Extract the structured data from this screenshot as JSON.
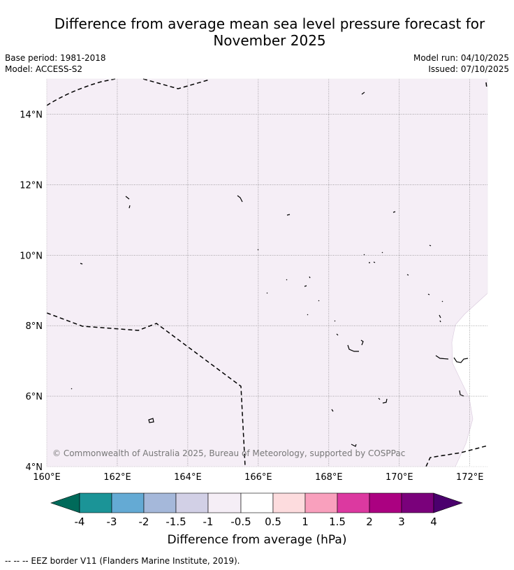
{
  "title_line1": "Difference from average mean sea level pressure forecast for",
  "title_line2": "November 2025",
  "base_period": "Base period: 1981-2018",
  "model": "Model: ACCESS-S2",
  "model_run": "Model run: 04/10/2025",
  "issued": "Issued: 07/10/2025",
  "copyright": "© Commonwealth of Australia 2025, Bureau of Meteorology, supported by COSPPac",
  "map": {
    "lat_labels": [
      "14°N",
      "12°N",
      "10°N",
      "8°N",
      "6°N",
      "4°N"
    ],
    "lon_labels": [
      "160°E",
      "162°E",
      "164°E",
      "166°E",
      "168°E",
      "170°E",
      "172°E"
    ],
    "lat_values": [
      14,
      12,
      10,
      8,
      6,
      4
    ],
    "lon_values": [
      160,
      162,
      164,
      166,
      168,
      170,
      172
    ],
    "fill_color": "#f5eef6",
    "grid": true
  },
  "colorbar": {
    "title": "Difference from average (hPa)",
    "tick_labels": [
      "-4",
      "-3",
      "-2",
      "-1.5",
      "-1",
      "-0.5",
      "0.5",
      "1",
      "1.5",
      "2",
      "3",
      "4"
    ],
    "colors": [
      "#006a5a",
      "#1b9497",
      "#64aad4",
      "#a5b8da",
      "#d2d0e6",
      "#f5eef6",
      "#ffffff",
      "#fddcde",
      "#f9a0bd",
      "#dc39a0",
      "#ab0181",
      "#7a017b",
      "#4b006d"
    ]
  },
  "footer": "--  --  -- EEZ border V11 (Flanders Marine Institute, 2019)."
}
